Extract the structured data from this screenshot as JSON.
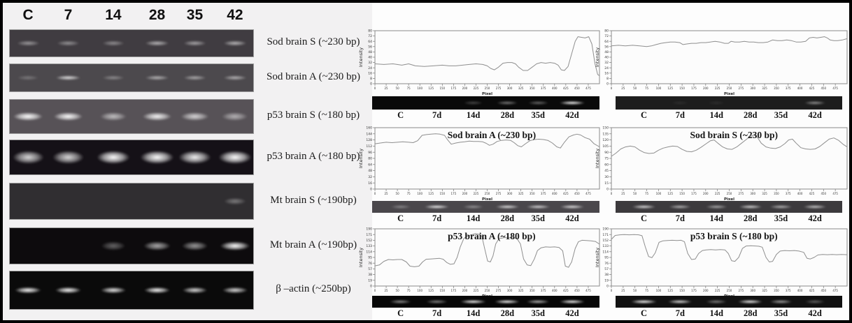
{
  "left_gels": {
    "lane_headers": [
      "C",
      "7",
      "14",
      "28",
      "35",
      "42"
    ],
    "rows": [
      {
        "label": "Sod brain S (~230 bp)",
        "bg": "#403c41",
        "style": "thin",
        "bands": [
          0.45,
          0.42,
          0.4,
          0.58,
          0.5,
          0.58
        ]
      },
      {
        "label": "Sod brain A (~230 bp)",
        "bg": "#4c494d",
        "style": "thin",
        "bands": [
          0.25,
          0.78,
          0.35,
          0.55,
          0.5,
          0.55
        ]
      },
      {
        "label": "p53 brain S (~180 bp)",
        "bg": "#575257",
        "style": "thick",
        "bands": [
          1.0,
          0.95,
          0.6,
          0.9,
          0.72,
          0.52
        ]
      },
      {
        "label": "p53 brain A (~180 bp)",
        "bg": "#151117",
        "style": "blob",
        "bands": [
          0.8,
          0.8,
          1.0,
          1.0,
          0.9,
          1.0
        ]
      },
      {
        "label": "Mt brain S (~190bp)",
        "bg": "#302e31",
        "style": "thin",
        "bands": [
          0,
          0,
          0,
          0,
          0,
          0.35
        ]
      },
      {
        "label": "Mt brain A (~190bp)",
        "bg": "#0d0b0d",
        "style": "thick",
        "bands": [
          0,
          0,
          0.35,
          0.62,
          0.55,
          0.95
        ]
      },
      {
        "label": "β –actin  (~250bp)",
        "bg": "#0a0a0a",
        "style": "thin",
        "bands": [
          0.92,
          0.92,
          0.85,
          0.92,
          0.8,
          0.8
        ]
      }
    ]
  },
  "panels": [
    {
      "title": "",
      "strip_bg": "#0a0a0a",
      "strip_bands": [
        0,
        0,
        0.25,
        0.45,
        0.38,
        0.95
      ],
      "lanes": [
        "C",
        "7d",
        "14d",
        "28d",
        "35d",
        "42d"
      ]
    },
    {
      "title": "",
      "strip_bg": "#1d1d1d",
      "strip_bands": [
        0,
        0.08,
        0.08,
        0,
        0,
        0.5
      ],
      "lanes": [
        "C",
        "7d",
        "14d",
        "28d",
        "35d",
        "42d"
      ]
    },
    {
      "title": "Sod brain A (~230 bp)",
      "strip_bg": "#4a474b",
      "strip_bands": [
        0.35,
        0.88,
        0.4,
        0.8,
        0.75,
        0.8
      ],
      "lanes": [
        "C",
        "7d",
        "14d",
        "28d",
        "35d",
        "42d"
      ]
    },
    {
      "title": "Sod brain S (~230 bp)",
      "strip_bg": "#3c3a3d",
      "strip_bands": [
        0.8,
        0.6,
        0.55,
        0.75,
        0.6,
        0.7
      ],
      "lanes": [
        "C",
        "7d",
        "14d",
        "28d",
        "35d",
        "42d"
      ]
    },
    {
      "title": "p53 brain A (~180 bp)",
      "strip_bg": "#070707",
      "strip_bands": [
        0.55,
        0.5,
        0.97,
        0.97,
        0.7,
        0.97
      ],
      "lanes": [
        "C",
        "7d",
        "14d",
        "28d",
        "35d",
        "42d"
      ]
    },
    {
      "title": "p53 brain S (~180 bp)",
      "strip_bg": "#111111",
      "strip_bands": [
        1.0,
        0.85,
        0.45,
        0.92,
        0.6,
        0.35
      ],
      "lanes": [
        "C",
        "7d",
        "14d",
        "28d",
        "35d",
        "42d"
      ]
    }
  ],
  "chart_data": [
    {
      "type": "line",
      "title": "",
      "xlabel": "Pixel",
      "ylabel": "Intensity",
      "xlim": [
        0,
        500
      ],
      "ylim": [
        0,
        80
      ],
      "yticks": [
        80,
        72,
        64,
        56,
        48,
        40,
        32,
        24,
        16,
        8,
        0
      ],
      "xticks": [
        0,
        25,
        50,
        75,
        100,
        125,
        150,
        175,
        200,
        225,
        250,
        275,
        300,
        325,
        350,
        375,
        400,
        425,
        450,
        475
      ],
      "lanes": [
        "C",
        "7d",
        "14d",
        "28d",
        "35d",
        "42d"
      ],
      "points": {
        "x": [
          0,
          20,
          40,
          60,
          75,
          90,
          110,
          130,
          150,
          165,
          180,
          195,
          210,
          225,
          240,
          250,
          258,
          266,
          275,
          285,
          295,
          305,
          313,
          320,
          330,
          340,
          350,
          360,
          370,
          380,
          390,
          400,
          408,
          415,
          422,
          430,
          438,
          446,
          452,
          460,
          468,
          476,
          483,
          490,
          496,
          500
        ],
        "y": [
          30,
          29,
          30,
          28,
          30,
          27,
          26,
          27,
          28,
          27,
          27,
          28,
          29,
          30,
          29,
          27,
          23,
          21,
          25,
          31,
          32,
          32,
          30,
          25,
          20,
          20,
          25,
          30,
          32,
          31,
          32,
          31,
          28,
          21,
          20,
          26,
          45,
          64,
          71,
          70,
          69,
          71,
          60,
          30,
          14,
          12
        ]
      }
    },
    {
      "type": "line",
      "title": "",
      "xlabel": "Pixel",
      "ylabel": "Intensity",
      "xlim": [
        0,
        500
      ],
      "ylim": [
        0,
        80
      ],
      "yticks": [
        80,
        72,
        64,
        56,
        48,
        40,
        32,
        24,
        16,
        8,
        0
      ],
      "xticks": [
        0,
        25,
        50,
        75,
        100,
        125,
        150,
        175,
        200,
        225,
        250,
        275,
        300,
        325,
        350,
        375,
        400,
        425,
        450,
        475
      ],
      "lanes": [
        "C",
        "7d",
        "14d",
        "28d",
        "35d",
        "42d"
      ],
      "points": {
        "x": [
          0,
          15,
          30,
          45,
          60,
          75,
          85,
          95,
          105,
          115,
          125,
          135,
          145,
          152,
          160,
          170,
          180,
          190,
          200,
          210,
          220,
          230,
          240,
          248,
          254,
          262,
          272,
          282,
          292,
          302,
          312,
          322,
          332,
          342,
          352,
          362,
          372,
          382,
          392,
          402,
          412,
          420,
          428,
          436,
          444,
          452,
          458,
          464,
          472,
          480,
          490,
          500
        ],
        "y": [
          57,
          58,
          57,
          58,
          57,
          56,
          57,
          59,
          61,
          62,
          63,
          63,
          62,
          59,
          60,
          61,
          61,
          62,
          62,
          63,
          64,
          63,
          61,
          61,
          64,
          63,
          63,
          64,
          63,
          63,
          62,
          62,
          63,
          66,
          65,
          65,
          66,
          65,
          63,
          63,
          64,
          69,
          70,
          69,
          70,
          71,
          69,
          66,
          65,
          65,
          66,
          68
        ]
      }
    },
    {
      "type": "line",
      "title": "Sod brain A (~230 bp)",
      "xlabel": "Pixel",
      "ylabel": "Intensity",
      "xlim": [
        0,
        500
      ],
      "ylim": [
        0,
        160
      ],
      "yticks": [
        160,
        144,
        128,
        112,
        96,
        80,
        64,
        48,
        32,
        16,
        0
      ],
      "xticks": [
        0,
        25,
        50,
        75,
        100,
        125,
        150,
        175,
        200,
        225,
        250,
        275,
        300,
        325,
        350,
        375,
        400,
        425,
        450,
        475
      ],
      "lanes": [
        "C",
        "7d",
        "14d",
        "28d",
        "35d",
        "42d"
      ],
      "points": {
        "x": [
          0,
          12,
          25,
          38,
          50,
          62,
          75,
          85,
          95,
          105,
          115,
          125,
          135,
          145,
          155,
          162,
          170,
          180,
          190,
          200,
          210,
          220,
          230,
          240,
          248,
          255,
          263,
          272,
          282,
          292,
          302,
          310,
          318,
          326,
          335,
          345,
          355,
          365,
          375,
          385,
          395,
          405,
          413,
          422,
          432,
          442,
          450,
          458,
          468,
          478,
          488,
          500
        ],
        "y": [
          118,
          120,
          122,
          121,
          122,
          123,
          122,
          121,
          126,
          140,
          142,
          143,
          144,
          143,
          140,
          128,
          117,
          120,
          122,
          123,
          125,
          124,
          124,
          123,
          119,
          114,
          117,
          124,
          127,
          128,
          127,
          121,
          113,
          110,
          118,
          126,
          129,
          130,
          129,
          127,
          120,
          110,
          107,
          122,
          136,
          141,
          143,
          141,
          134,
          130,
          118,
          110
        ]
      }
    },
    {
      "type": "line",
      "title": "Sod brain S (~230 bp)",
      "xlabel": "Pixel",
      "ylabel": "Intensity",
      "xlim": [
        0,
        500
      ],
      "ylim": [
        0,
        150
      ],
      "yticks": [
        150,
        135,
        120,
        105,
        90,
        75,
        60,
        45,
        30,
        15,
        0
      ],
      "xticks": [
        0,
        25,
        50,
        75,
        100,
        125,
        150,
        175,
        200,
        225,
        250,
        275,
        300,
        325,
        350,
        375,
        400,
        425,
        450,
        475
      ],
      "lanes": [
        "C",
        "7d",
        "14d",
        "28d",
        "35d",
        "42d"
      ],
      "points": {
        "x": [
          0,
          10,
          20,
          30,
          40,
          50,
          60,
          70,
          80,
          90,
          100,
          110,
          120,
          130,
          140,
          150,
          160,
          170,
          180,
          190,
          200,
          210,
          218,
          226,
          236,
          246,
          256,
          266,
          276,
          286,
          295,
          302,
          310,
          318,
          328,
          338,
          348,
          358,
          368,
          376,
          384,
          392,
          402,
          412,
          422,
          432,
          442,
          452,
          462,
          472,
          482,
          492,
          500
        ],
        "y": [
          80,
          88,
          98,
          103,
          105,
          103,
          95,
          89,
          87,
          88,
          95,
          100,
          103,
          105,
          104,
          97,
          92,
          91,
          95,
          102,
          110,
          118,
          120,
          112,
          103,
          98,
          97,
          103,
          112,
          121,
          129,
          132,
          126,
          112,
          103,
          100,
          99,
          103,
          111,
          120,
          122,
          112,
          101,
          98,
          97,
          98,
          104,
          113,
          122,
          125,
          119,
          109,
          103
        ]
      }
    },
    {
      "type": "line",
      "title": "p53 brain A (~180 bp)",
      "xlabel": "Pixel",
      "ylabel": "Intensity",
      "xlim": [
        0,
        500
      ],
      "ylim": [
        0,
        190
      ],
      "yticks": [
        190,
        171,
        152,
        133,
        114,
        95,
        76,
        57,
        38,
        19,
        0
      ],
      "xticks": [
        0,
        25,
        50,
        75,
        100,
        125,
        150,
        175,
        200,
        225,
        250,
        275,
        300,
        325,
        350,
        375,
        400,
        425,
        450,
        475
      ],
      "lanes": [
        "C",
        "7d",
        "14d",
        "28d",
        "35d",
        "42d"
      ],
      "points": {
        "x": [
          0,
          10,
          20,
          30,
          40,
          50,
          60,
          70,
          78,
          88,
          98,
          106,
          114,
          124,
          134,
          144,
          152,
          160,
          168,
          176,
          183,
          190,
          198,
          206,
          215,
          224,
          231,
          238,
          245,
          251,
          257,
          263,
          269,
          276,
          286,
          296,
          306,
          316,
          324,
          331,
          339,
          347,
          355,
          362,
          370,
          380,
          390,
          400,
          410,
          418,
          424,
          431,
          438,
          446,
          453,
          461,
          471,
          481,
          491,
          500
        ],
        "y": [
          67,
          70,
          82,
          88,
          87,
          88,
          88,
          80,
          66,
          64,
          66,
          80,
          89,
          90,
          91,
          92,
          89,
          78,
          72,
          74,
          95,
          130,
          158,
          166,
          170,
          174,
          172,
          166,
          120,
          83,
          80,
          100,
          140,
          157,
          160,
          162,
          160,
          158,
          140,
          90,
          70,
          68,
          90,
          118,
          127,
          130,
          129,
          130,
          128,
          117,
          66,
          62,
          80,
          125,
          147,
          152,
          151,
          150,
          148,
          139
        ]
      }
    },
    {
      "type": "line",
      "title": "p53 brain S (~180 bp)",
      "xlabel": "Pixel",
      "ylabel": "Intensity",
      "xlim": [
        0,
        500
      ],
      "ylim": [
        0,
        190
      ],
      "yticks": [
        190,
        171,
        152,
        133,
        114,
        95,
        76,
        57,
        38,
        19,
        0
      ],
      "xticks": [
        0,
        25,
        50,
        75,
        100,
        125,
        150,
        175,
        200,
        225,
        250,
        275,
        300,
        325,
        350,
        375,
        400,
        425,
        450,
        475
      ],
      "lanes": [
        "C",
        "7d",
        "14d",
        "28d",
        "35d",
        "42d"
      ],
      "points": {
        "x": [
          0,
          8,
          18,
          28,
          38,
          48,
          58,
          65,
          72,
          79,
          86,
          93,
          101,
          109,
          119,
          129,
          139,
          148,
          155,
          162,
          170,
          178,
          185,
          193,
          201,
          211,
          221,
          231,
          241,
          248,
          255,
          262,
          270,
          278,
          286,
          296,
          306,
          313,
          320,
          328,
          335,
          342,
          350,
          358,
          368,
          378,
          388,
          398,
          408,
          415,
          422,
          430,
          438,
          448,
          458,
          468,
          478,
          488,
          500
        ],
        "y": [
          155,
          168,
          170,
          171,
          170,
          171,
          170,
          167,
          130,
          98,
          94,
          110,
          145,
          150,
          151,
          152,
          151,
          152,
          147,
          108,
          88,
          90,
          108,
          118,
          120,
          121,
          120,
          121,
          120,
          108,
          84,
          82,
          95,
          125,
          133,
          134,
          133,
          132,
          129,
          95,
          80,
          82,
          105,
          116,
          118,
          117,
          118,
          116,
          112,
          92,
          90,
          95,
          103,
          105,
          104,
          105,
          104,
          105,
          104
        ]
      }
    }
  ]
}
